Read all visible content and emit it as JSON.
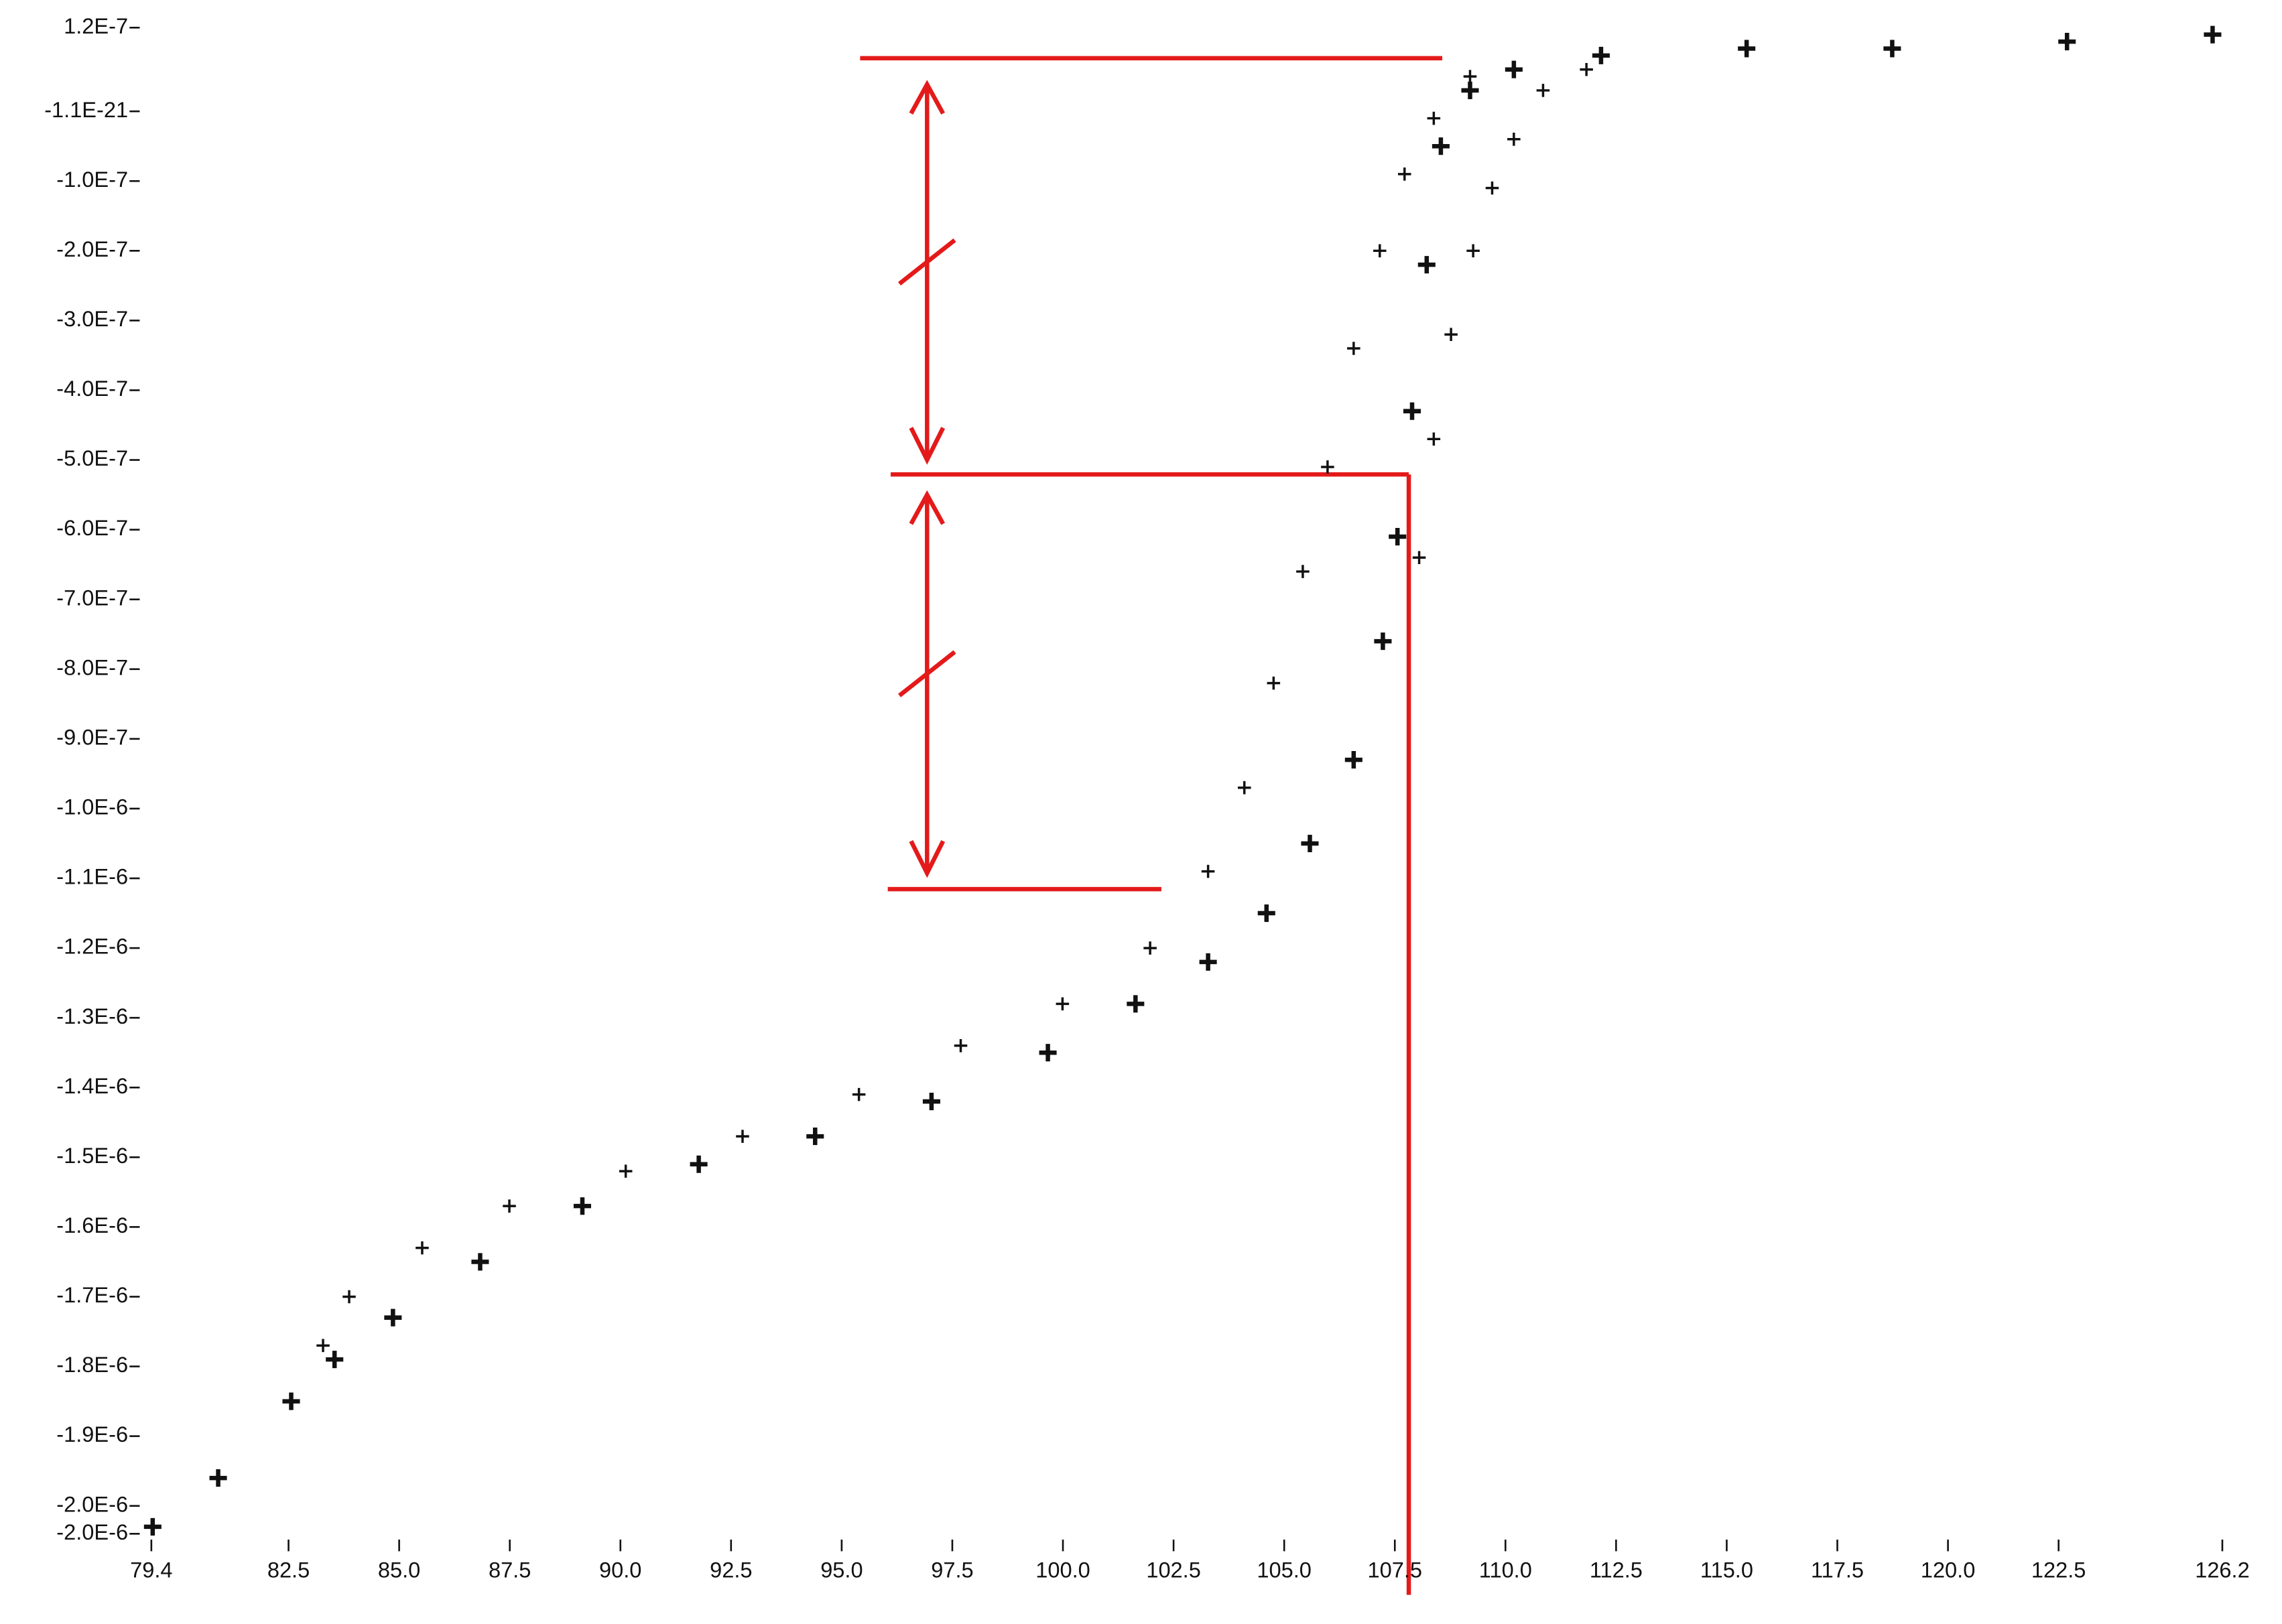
{
  "chart_data": {
    "type": "scatter",
    "xlim": [
      79.4,
      126.2
    ],
    "xticks": [
      79.4,
      82.5,
      {
        "value": 85.0,
        "label": "85.0"
      },
      87.5,
      {
        "value": 90.0,
        "label": "90.0"
      },
      92.5,
      {
        "value": 95.0,
        "label": "95.0"
      },
      97.5,
      {
        "value": 100.0,
        "label": "100.0"
      },
      102.5,
      {
        "value": 105.0,
        "label": "105.0"
      },
      107.5,
      {
        "value": 110.0,
        "label": "110.0"
      },
      112.5,
      {
        "value": 115.0,
        "label": "115.0"
      },
      117.5,
      {
        "value": 120.0,
        "label": "120.0"
      },
      122.5,
      126.2
    ],
    "ylim": [
      -2.04e-06,
      1.2e-07
    ],
    "yticks": [
      {
        "value": 1.2e-07,
        "label": "1.2E-7"
      },
      {
        "value": -1.1e-21,
        "label": "-1.1E-21"
      },
      {
        "value": -1e-07,
        "label": "-1.0E-7"
      },
      {
        "value": -2e-07,
        "label": "-2.0E-7"
      },
      {
        "value": -3e-07,
        "label": "-3.0E-7"
      },
      {
        "value": -4e-07,
        "label": "-4.0E-7"
      },
      {
        "value": -5e-07,
        "label": "-5.0E-7"
      },
      {
        "value": -6e-07,
        "label": "-6.0E-7"
      },
      {
        "value": -7e-07,
        "label": "-7.0E-7"
      },
      {
        "value": -8e-07,
        "label": "-8.0E-7"
      },
      {
        "value": -9e-07,
        "label": "-9.0E-7"
      },
      {
        "value": -1e-06,
        "label": "-1.0E-6"
      },
      {
        "value": -1.1e-06,
        "label": "-1.1E-6"
      },
      {
        "value": -1.2e-06,
        "label": "-1.2E-6"
      },
      {
        "value": -1.3e-06,
        "label": "-1.3E-6"
      },
      {
        "value": -1.4e-06,
        "label": "-1.4E-6"
      },
      {
        "value": -1.5e-06,
        "label": "-1.5E-6"
      },
      {
        "value": -1.6e-06,
        "label": "-1.6E-6"
      },
      {
        "value": -1.7e-06,
        "label": "-1.7E-6"
      },
      {
        "value": -1.8e-06,
        "label": "-1.8E-6"
      },
      {
        "value": -1.9e-06,
        "label": "-1.9E-6"
      },
      {
        "value": -2e-06,
        "label": "-2.0E-6"
      },
      {
        "value": -2.04e-06,
        "label": "-2.0E-6"
      }
    ],
    "grid": false,
    "series": [
      {
        "color": "#111111",
        "x": [
          79.43,
          80.91,
          82.56,
          83.54,
          84.86,
          86.83,
          89.14,
          91.77,
          94.4,
          97.03,
          99.66,
          101.64,
          103.28,
          104.6,
          105.58,
          106.57,
          107.23,
          107.56,
          107.89,
          108.22,
          108.54,
          109.2,
          110.19,
          112.16,
          115.45,
          118.74,
          122.69,
          125.98
        ],
        "values": [
          -2.03e-06,
          -1.96e-06,
          -1.85e-06,
          -1.79e-06,
          -1.73e-06,
          -1.65e-06,
          -1.57e-06,
          -1.51e-06,
          -1.47e-06,
          -1.42e-06,
          -1.35e-06,
          -1.28e-06,
          -1.22e-06,
          -1.15e-06,
          -1.05e-06,
          -9.3e-07,
          -7.6e-07,
          -6.1e-07,
          -4.3e-07,
          -2.2e-07,
          -5e-08,
          3e-08,
          6e-08,
          8e-08,
          9e-08,
          9e-08,
          1e-07,
          1.1e-07
        ]
      },
      {
        "color": "#111111",
        "x": [
          83.28,
          83.87,
          85.52,
          87.49,
          90.12,
          92.76,
          95.39,
          97.69,
          99.99,
          101.97,
          103.28,
          104.1,
          104.76,
          105.42,
          105.98,
          106.57,
          107.16,
          107.72,
          108.38,
          109.2
        ],
        "values": [
          -1.77e-06,
          -1.7e-06,
          -1.63e-06,
          -1.57e-06,
          -1.52e-06,
          -1.47e-06,
          -1.41e-06,
          -1.34e-06,
          -1.28e-06,
          -1.2e-06,
          -1.09e-06,
          -9.7e-07,
          -8.2e-07,
          -6.6e-07,
          -5.1e-07,
          -3.4e-07,
          -2e-07,
          -9e-08,
          -1e-08,
          5e-08
        ]
      },
      {
        "color": "#111111",
        "x": [
          108.05,
          108.38,
          108.77,
          109.27,
          109.7,
          110.19,
          110.85,
          111.83
        ],
        "values": [
          -6.4e-07,
          -4.7e-07,
          -3.2e-07,
          -2e-07,
          -1.1e-07,
          -4e-08,
          3e-08,
          6e-08
        ]
      }
    ]
  }
}
